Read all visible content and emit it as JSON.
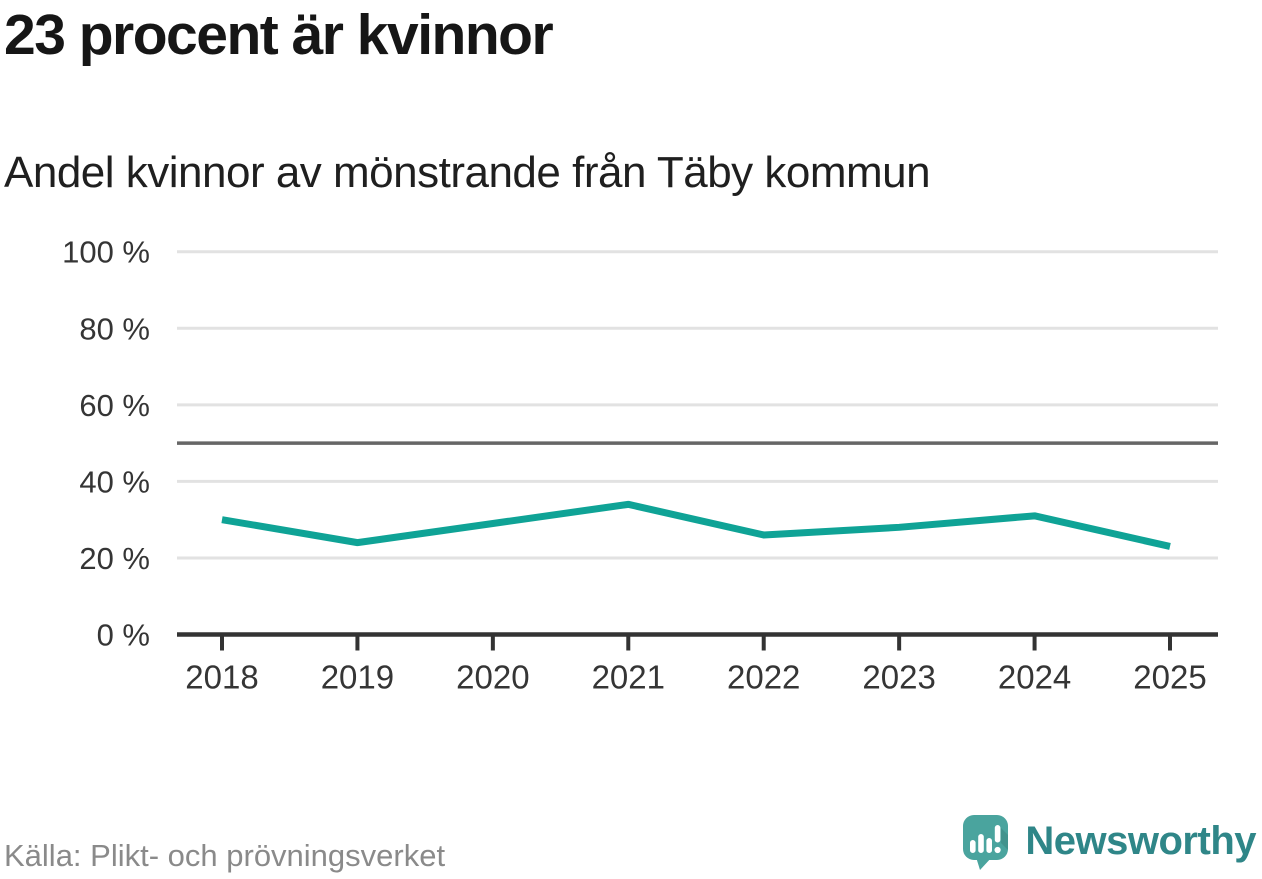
{
  "header": {
    "title": "23 procent är kvinnor",
    "subtitle": "Andel kvinnor av mönstrande från Täby kommun"
  },
  "chart_data": {
    "type": "line",
    "x": [
      "2018",
      "2019",
      "2020",
      "2021",
      "2022",
      "2023",
      "2024",
      "2025"
    ],
    "series": [
      {
        "name": "Andel kvinnor av mönstrande",
        "color": "#0fa396",
        "values": [
          30,
          24,
          29,
          34,
          26,
          28,
          31,
          23
        ]
      }
    ],
    "title": "23 procent är kvinnor",
    "subtitle": "Andel kvinnor av mönstrande från Täby kommun",
    "xlabel": "",
    "ylabel": "",
    "ylim": [
      0,
      100
    ],
    "yticks": [
      100,
      80,
      60,
      40,
      20,
      0
    ],
    "ytick_suffix": " %",
    "reference_line_y": 50,
    "grid": true,
    "legend_position": "none",
    "colors": {
      "grid": "#e2e2e2",
      "reference_line": "#666666",
      "axis": "#333333",
      "tick_text": "#353535"
    }
  },
  "footer": {
    "source": "Källa: Plikt- och prövningsverket",
    "brand": {
      "name": "Newsworthy",
      "icon_color": "#4aa49e",
      "text_color": "#2f8688"
    }
  }
}
